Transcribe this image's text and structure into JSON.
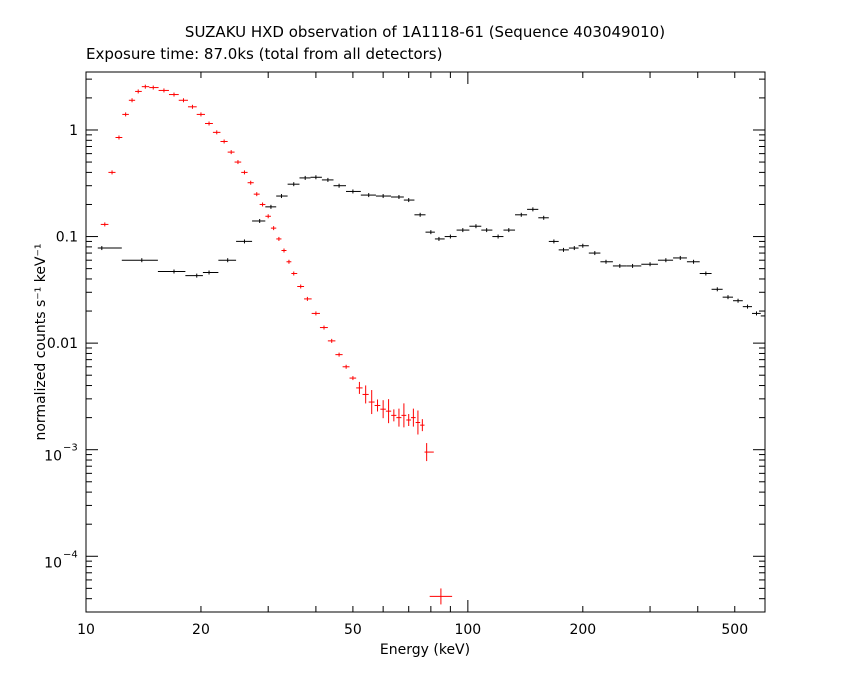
{
  "chart_data": {
    "type": "scatter",
    "title": "SUZAKU HXD observation of 1A1118-61 (Sequence 403049010)",
    "subtitle": "Exposure time: 87.0ks (total from all detectors)",
    "xlabel": "Energy (keV)",
    "ylabel": "normalized counts s⁻¹ keV⁻¹",
    "xscale": "log",
    "yscale": "log",
    "xlim": [
      10,
      600
    ],
    "ylim": [
      3e-05,
      3.5
    ],
    "x_ticks": [
      {
        "value": 10,
        "label": "10"
      },
      {
        "value": 20,
        "label": "20"
      },
      {
        "value": 50,
        "label": "50"
      },
      {
        "value": 100,
        "label": "100"
      },
      {
        "value": 200,
        "label": "200"
      },
      {
        "value": 500,
        "label": "500"
      }
    ],
    "y_ticks": [
      {
        "value": 1,
        "label": "1"
      },
      {
        "value": 0.1,
        "label": "0.1"
      },
      {
        "value": 0.01,
        "label": "0.01"
      },
      {
        "value": 0.001,
        "label": "10",
        "exp": "−3"
      },
      {
        "value": 0.0001,
        "label": "10",
        "exp": "−4"
      }
    ],
    "grid": false,
    "colors": {
      "series_red": "#ff0000",
      "series_black": "#000000",
      "axes": "#000000",
      "background": "#ffffff"
    },
    "series": [
      {
        "color": "#ff0000",
        "marker": "errorbar",
        "points": [
          {
            "x": 11.2,
            "y": 0.13
          },
          {
            "x": 11.7,
            "y": 0.4
          },
          {
            "x": 12.2,
            "y": 0.85
          },
          {
            "x": 12.7,
            "y": 1.4
          },
          {
            "x": 13.2,
            "y": 1.9
          },
          {
            "x": 13.7,
            "y": 2.3
          },
          {
            "x": 14.3,
            "y": 2.55
          },
          {
            "x": 15,
            "y": 2.5
          },
          {
            "x": 16,
            "y": 2.35
          },
          {
            "x": 17,
            "y": 2.15
          },
          {
            "x": 18,
            "y": 1.9
          },
          {
            "x": 19,
            "y": 1.65
          },
          {
            "x": 20,
            "y": 1.4
          },
          {
            "x": 21,
            "y": 1.15
          },
          {
            "x": 22,
            "y": 0.95
          },
          {
            "x": 23,
            "y": 0.78
          },
          {
            "x": 24,
            "y": 0.62
          },
          {
            "x": 25,
            "y": 0.5
          },
          {
            "x": 26,
            "y": 0.4
          },
          {
            "x": 27,
            "y": 0.32
          },
          {
            "x": 28,
            "y": 0.25
          },
          {
            "x": 29,
            "y": 0.2
          },
          {
            "x": 30,
            "y": 0.155
          },
          {
            "x": 31,
            "y": 0.12
          },
          {
            "x": 32,
            "y": 0.095
          },
          {
            "x": 33,
            "y": 0.074
          },
          {
            "x": 34,
            "y": 0.058
          },
          {
            "x": 35,
            "y": 0.045
          },
          {
            "x": 36.5,
            "y": 0.034
          },
          {
            "x": 38,
            "y": 0.026
          },
          {
            "x": 40,
            "y": 0.019
          },
          {
            "x": 42,
            "y": 0.014
          },
          {
            "x": 44,
            "y": 0.0105
          },
          {
            "x": 46,
            "y": 0.0078
          },
          {
            "x": 48,
            "y": 0.006
          },
          {
            "x": 50,
            "y": 0.0047
          },
          {
            "x": 52,
            "y": 0.0038
          },
          {
            "x": 54,
            "y": 0.0033
          },
          {
            "x": 56,
            "y": 0.0028
          },
          {
            "x": 58,
            "y": 0.0026
          },
          {
            "x": 60,
            "y": 0.0024
          },
          {
            "x": 62,
            "y": 0.0023
          },
          {
            "x": 64,
            "y": 0.0021
          },
          {
            "x": 66,
            "y": 0.002
          },
          {
            "x": 68,
            "y": 0.0021
          },
          {
            "x": 70,
            "y": 0.0019
          },
          {
            "x": 72,
            "y": 0.002
          },
          {
            "x": 74,
            "y": 0.0018
          },
          {
            "x": 76,
            "y": 0.0017
          },
          {
            "x": 78,
            "y": 0.00095
          },
          {
            "x": 85,
            "y": 4.2e-05
          }
        ]
      },
      {
        "color": "#000000",
        "marker": "errorbar",
        "points": [
          {
            "x": 11,
            "y": 0.078
          },
          {
            "x": 14,
            "y": 0.06
          },
          {
            "x": 17,
            "y": 0.047
          },
          {
            "x": 19.5,
            "y": 0.043
          },
          {
            "x": 21,
            "y": 0.046
          },
          {
            "x": 23.5,
            "y": 0.06
          },
          {
            "x": 26,
            "y": 0.09
          },
          {
            "x": 28.5,
            "y": 0.14
          },
          {
            "x": 30.5,
            "y": 0.19
          },
          {
            "x": 32.5,
            "y": 0.24
          },
          {
            "x": 35,
            "y": 0.31
          },
          {
            "x": 37.5,
            "y": 0.355
          },
          {
            "x": 40,
            "y": 0.36
          },
          {
            "x": 43,
            "y": 0.34
          },
          {
            "x": 46,
            "y": 0.3
          },
          {
            "x": 50,
            "y": 0.265
          },
          {
            "x": 55,
            "y": 0.245
          },
          {
            "x": 60,
            "y": 0.24
          },
          {
            "x": 66,
            "y": 0.235
          },
          {
            "x": 70,
            "y": 0.22
          },
          {
            "x": 75,
            "y": 0.16
          },
          {
            "x": 80,
            "y": 0.11
          },
          {
            "x": 84,
            "y": 0.095
          },
          {
            "x": 90,
            "y": 0.1
          },
          {
            "x": 97,
            "y": 0.115
          },
          {
            "x": 105,
            "y": 0.125
          },
          {
            "x": 112,
            "y": 0.115
          },
          {
            "x": 120,
            "y": 0.1
          },
          {
            "x": 128,
            "y": 0.115
          },
          {
            "x": 138,
            "y": 0.16
          },
          {
            "x": 148,
            "y": 0.18
          },
          {
            "x": 158,
            "y": 0.15
          },
          {
            "x": 168,
            "y": 0.09
          },
          {
            "x": 178,
            "y": 0.075
          },
          {
            "x": 190,
            "y": 0.078
          },
          {
            "x": 200,
            "y": 0.082
          },
          {
            "x": 215,
            "y": 0.07
          },
          {
            "x": 230,
            "y": 0.058
          },
          {
            "x": 250,
            "y": 0.053
          },
          {
            "x": 270,
            "y": 0.053
          },
          {
            "x": 300,
            "y": 0.055
          },
          {
            "x": 330,
            "y": 0.06
          },
          {
            "x": 360,
            "y": 0.063
          },
          {
            "x": 390,
            "y": 0.058
          },
          {
            "x": 420,
            "y": 0.045
          },
          {
            "x": 450,
            "y": 0.032
          },
          {
            "x": 480,
            "y": 0.027
          },
          {
            "x": 510,
            "y": 0.025
          },
          {
            "x": 540,
            "y": 0.022
          },
          {
            "x": 570,
            "y": 0.019
          },
          {
            "x": 600,
            "y": 0.018
          }
        ]
      }
    ]
  }
}
